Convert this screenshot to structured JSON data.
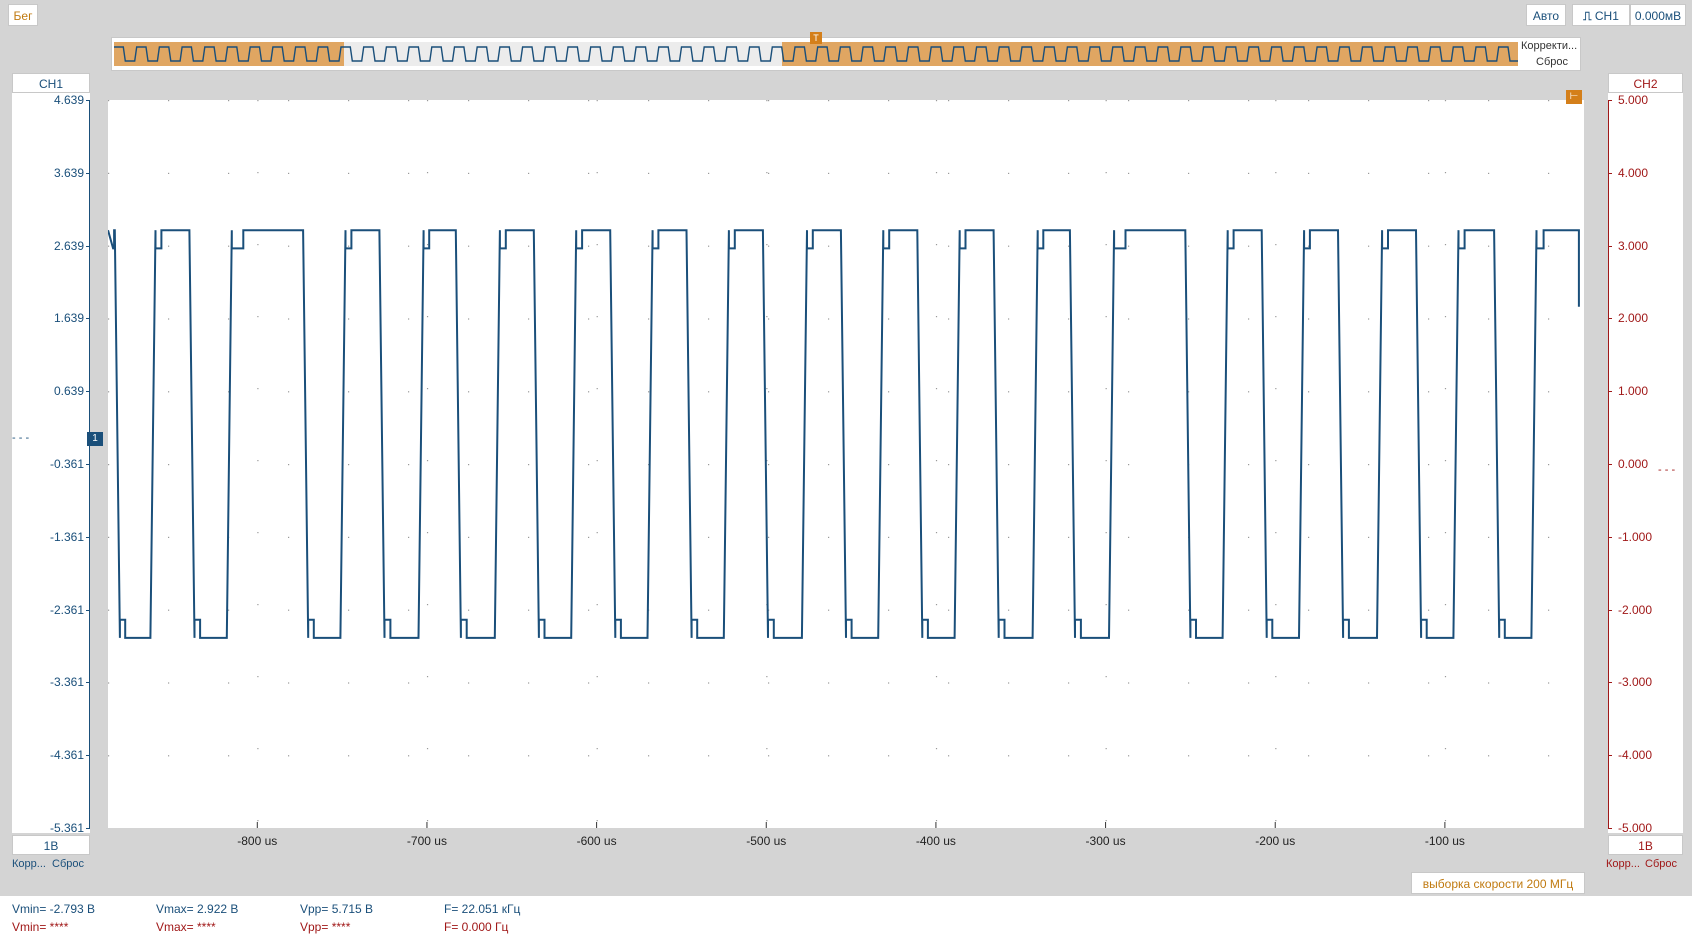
{
  "toolbar": {
    "run_label": "Бег",
    "mode_label": "Авто",
    "trigger_source": "CH1",
    "trigger_level": "0.000мВ"
  },
  "overview": {
    "correct_label": "Корректи...",
    "reset_label": "Сброс"
  },
  "ch1": {
    "label": "CH1",
    "scale": "1В",
    "corr": "Корр...",
    "reset": "Сброс",
    "color": "#1a4f7a"
  },
  "ch2": {
    "label": "CH2",
    "scale": "1В",
    "corr": "Корр...",
    "reset": "Сброс",
    "color": "#a01818"
  },
  "sample_rate": "выборка скорости 200 МГц",
  "measurements": {
    "ch1": {
      "vmin": "Vmin= -2.793 В",
      "vmax": "Vmax= 2.922 В",
      "vpp": "Vpp= 5.715 В",
      "freq": "F= 22.051 кГц"
    },
    "ch2": {
      "vmin": "Vmin= ****",
      "vmax": "Vmax= ****",
      "vpp": "Vpp= ****",
      "freq": "F= 0.000 Гц"
    }
  },
  "chart_data": {
    "type": "line",
    "x_unit": "us",
    "xlim": [
      -888,
      -18
    ],
    "x_ticks": [
      -800,
      -700,
      -600,
      -500,
      -400,
      -300,
      -200,
      -100
    ],
    "x_tick_labels": [
      "-800 us",
      "-700 us",
      "-600 us",
      "-500 us",
      "-400 us",
      "-300 us",
      "-200 us",
      "-100 us"
    ],
    "y_left_ticks": [
      "4.639",
      "3.639",
      "2.639",
      "1.639",
      "0.639",
      "-0.361",
      "-1.361",
      "-2.361",
      "-3.361",
      "-4.361",
      "-5.361"
    ],
    "y_left_lim": [
      -5.361,
      4.639
    ],
    "y_right_ticks": [
      "5.000",
      "4.000",
      "3.000",
      "2.000",
      "1.000",
      "0.000",
      "-1.000",
      "-2.000",
      "-3.000",
      "-4.000",
      "-5.000"
    ],
    "y_right_lim": [
      -5.0,
      5.0
    ],
    "grid": true,
    "series": [
      {
        "name": "CH1",
        "high": 2.85,
        "low": -2.75,
        "transitions": [
          [
            -888,
            "H"
          ],
          [
            -884,
            "L"
          ],
          [
            -863,
            "H"
          ],
          [
            -840,
            "L"
          ],
          [
            -818,
            "H"
          ],
          [
            -773,
            "L"
          ],
          [
            -751,
            "H"
          ],
          [
            -728,
            "L"
          ],
          [
            -705,
            "H"
          ],
          [
            -683,
            "L"
          ],
          [
            -660,
            "H"
          ],
          [
            -637,
            "L"
          ],
          [
            -615,
            "H"
          ],
          [
            -592,
            "L"
          ],
          [
            -570,
            "H"
          ],
          [
            -547,
            "L"
          ],
          [
            -525,
            "H"
          ],
          [
            -502,
            "L"
          ],
          [
            -479,
            "H"
          ],
          [
            -456,
            "L"
          ],
          [
            -434,
            "H"
          ],
          [
            -411,
            "L"
          ],
          [
            -389,
            "H"
          ],
          [
            -366,
            "L"
          ],
          [
            -343,
            "H"
          ],
          [
            -321,
            "L"
          ],
          [
            -298,
            "H"
          ],
          [
            -253,
            "L"
          ],
          [
            -231,
            "H"
          ],
          [
            -208,
            "L"
          ],
          [
            -186,
            "H"
          ],
          [
            -163,
            "L"
          ],
          [
            -140,
            "H"
          ],
          [
            -117,
            "L"
          ],
          [
            -95,
            "H"
          ],
          [
            -71,
            "L"
          ],
          [
            -49,
            "H"
          ]
        ],
        "end_x": -21,
        "end_y": 1.8
      }
    ]
  }
}
